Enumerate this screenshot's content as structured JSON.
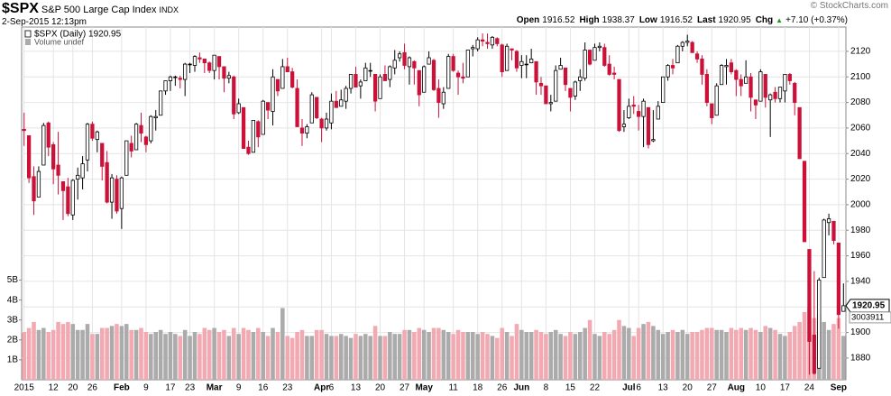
{
  "header": {
    "symbol": "$SPX",
    "name": "S&P 500 Large Cap Index",
    "exchange": "INDX",
    "datetime": "2-Sep-2015 12:13pm",
    "copyright": "© StockCharts.com",
    "quote": [
      {
        "label": "Open",
        "value": "1916.52"
      },
      {
        "label": "High",
        "value": "1938.37"
      },
      {
        "label": "Low",
        "value": "1916.52"
      },
      {
        "label": "Last",
        "value": "1920.95"
      },
      {
        "label": "Chg",
        "value": "+7.10 (+0.37%)"
      }
    ]
  },
  "chart_data": {
    "type": "candlestick",
    "legend": [
      "$SPX (Daily) 1920.95",
      "Volume undef"
    ],
    "price_tag": "1920.95",
    "volume_tag": "3003911",
    "colors": {
      "up": "#000000",
      "down": "#cc1139",
      "volume_up": "#ababab",
      "volume_down": "#f2a9b1",
      "grid": "#e4e4e4"
    },
    "grid": true,
    "categories": [
      "2015",
      null,
      null,
      null,
      null,
      null,
      "12",
      null,
      null,
      null,
      "20",
      null,
      null,
      null,
      "26",
      null,
      null,
      null,
      null,
      null,
      "Feb",
      null,
      null,
      null,
      null,
      "9",
      null,
      null,
      null,
      null,
      "17",
      null,
      null,
      null,
      "23",
      null,
      null,
      null,
      null,
      "Mar",
      null,
      null,
      null,
      null,
      "9",
      null,
      null,
      null,
      null,
      "16",
      null,
      null,
      null,
      null,
      "23",
      null,
      null,
      null,
      null,
      null,
      null,
      "Apr",
      null,
      "6",
      null,
      null,
      null,
      null,
      "13",
      null,
      null,
      null,
      null,
      "20",
      null,
      null,
      null,
      null,
      "27",
      null,
      null,
      null,
      "May",
      null,
      null,
      null,
      null,
      null,
      "11",
      null,
      null,
      null,
      null,
      "18",
      null,
      null,
      null,
      null,
      "26",
      null,
      null,
      null,
      "Jun",
      null,
      null,
      null,
      null,
      "8",
      null,
      null,
      null,
      null,
      "15",
      null,
      null,
      null,
      null,
      "22",
      null,
      null,
      null,
      null,
      null,
      null,
      "Jul",
      null,
      "6",
      null,
      null,
      null,
      null,
      "13",
      null,
      null,
      null,
      null,
      "20",
      null,
      null,
      null,
      null,
      "27",
      null,
      null,
      null,
      null,
      "Aug",
      null,
      null,
      null,
      null,
      "10",
      null,
      null,
      null,
      null,
      "17",
      null,
      null,
      null,
      null,
      "24",
      null,
      null,
      null,
      null,
      null,
      "Sep",
      null
    ],
    "open": [
      2059,
      2054,
      2022,
      2006,
      2031,
      2064,
      2047,
      2031,
      2018,
      2014,
      1992,
      2020,
      2021,
      2035,
      2063,
      2051,
      2048,
      2033,
      2002,
      2020,
      1997,
      2023,
      2048,
      2043,
      2062,
      2053,
      2050,
      2068,
      2070,
      2089,
      2097,
      2100,
      2099,
      2098,
      2110,
      2109,
      2115,
      2114,
      2111,
      2105,
      2116,
      2108,
      2099,
      2100,
      2072,
      2076,
      2045,
      2041,
      2065,
      2055,
      2080,
      2073,
      2098,
      2091,
      2108,
      2104,
      2091,
      2060,
      2056,
      2064,
      2084,
      2067,
      2060,
      2064,
      2081,
      2077,
      2081,
      2091,
      2102,
      2093,
      2097,
      2105,
      2102,
      2083,
      2102,
      2098,
      2107,
      2115,
      2119,
      2108,
      2112,
      2105,
      2088,
      2110,
      2113,
      2091,
      2079,
      2091,
      2116,
      2103,
      2100,
      2100,
      2122,
      2122,
      2129,
      2127,
      2125,
      2130,
      2125,
      2105,
      2122,
      2120,
      2109,
      2110,
      2111,
      2112,
      2095,
      2093,
      2079,
      2081,
      2106,
      2107,
      2091,
      2085,
      2097,
      2099,
      2121,
      2113,
      2123,
      2123,
      2110,
      2103,
      2098,
      2061,
      2068,
      2078,
      2073,
      2069,
      2076,
      2050,
      2067,
      2080,
      2100,
      2109,
      2111,
      2124,
      2127,
      2127,
      2118,
      2114,
      2102,
      2079,
      2070,
      2094,
      2108,
      2111,
      2105,
      2098,
      2095,
      2100,
      2082,
      2081,
      2102,
      2082,
      2088,
      2083,
      2089,
      2102,
      2095,
      2076,
      2034,
      1965,
      1898,
      1872,
      1943,
      1986,
      1987,
      1970,
      1916.52
    ],
    "high": [
      2072,
      2054,
      2030,
      2030,
      2064,
      2065,
      2049,
      2057,
      2018,
      2021,
      2020,
      2029,
      2038,
      2064,
      2065,
      2058,
      2048,
      2042,
      2024,
      2023,
      2022,
      2050,
      2054,
      2064,
      2072,
      2054,
      2070,
      2074,
      2089,
      2097,
      2101,
      2101,
      2101,
      2111,
      2111,
      2117,
      2119,
      2114,
      2112,
      2117,
      2116,
      2108,
      2104,
      2101,
      2083,
      2076,
      2050,
      2066,
      2066,
      2082,
      2080,
      2106,
      2098,
      2114,
      2115,
      2107,
      2098,
      2067,
      2063,
      2088,
      2084,
      2068,
      2072,
      2087,
      2089,
      2090,
      2093,
      2102,
      2108,
      2098,
      2111,
      2111,
      2102,
      2102,
      2109,
      2109,
      2121,
      2120,
      2126,
      2116,
      2113,
      2105,
      2109,
      2120,
      2114,
      2098,
      2092,
      2118,
      2118,
      2105,
      2111,
      2121,
      2125,
      2131,
      2134,
      2134,
      2132,
      2131,
      2126,
      2126,
      2122,
      2121,
      2117,
      2117,
      2122,
      2112,
      2100,
      2093,
      2086,
      2109,
      2115,
      2107,
      2091,
      2097,
      2106,
      2127,
      2121,
      2126,
      2127,
      2126,
      2117,
      2108,
      2098,
      2074,
      2083,
      2085,
      2078,
      2083,
      2076,
      2074,
      2081,
      2100,
      2110,
      2114,
      2125,
      2128,
      2133,
      2128,
      2120,
      2117,
      2106,
      2079,
      2095,
      2110,
      2114,
      2114,
      2106,
      2102,
      2113,
      2103,
      2082,
      2106,
      2102,
      2087,
      2092,
      2092,
      2102,
      2103,
      2096,
      2076,
      2034,
      1965,
      1948,
      1943,
      1989,
      1993,
      1987,
      1970,
      1938.37
    ],
    "low": [
      2046,
      2017,
      1992,
      2006,
      2031,
      2038,
      2016,
      2008,
      1988,
      1991,
      1988,
      2004,
      2012,
      2026,
      2050,
      2041,
      2019,
      2001,
      1989,
      1993,
      1981,
      2023,
      2037,
      2043,
      2049,
      2041,
      2048,
      2058,
      2070,
      2086,
      2089,
      2093,
      2091,
      2085,
      2103,
      2104,
      2111,
      2103,
      2103,
      2098,
      2098,
      2088,
      2095,
      2067,
      2071,
      2044,
      2039,
      2041,
      2045,
      2055,
      2067,
      2062,
      2085,
      2091,
      2104,
      2091,
      2061,
      2046,
      2052,
      2064,
      2067,
      2049,
      2058,
      2059,
      2076,
      2077,
      2075,
      2087,
      2092,
      2083,
      2097,
      2100,
      2073,
      2083,
      2097,
      2092,
      2102,
      2112,
      2106,
      2094,
      2094,
      2077,
      2088,
      2110,
      2089,
      2068,
      2075,
      2091,
      2104,
      2086,
      2095,
      2100,
      2116,
      2120,
      2124,
      2122,
      2122,
      2124,
      2100,
      2105,
      2113,
      2104,
      2099,
      2099,
      2111,
      2086,
      2086,
      2079,
      2073,
      2081,
      2106,
      2089,
      2073,
      2082,
      2089,
      2097,
      2109,
      2113,
      2120,
      2108,
      2101,
      2098,
      2057,
      2057,
      2067,
      2071,
      2058,
      2045,
      2044,
      2049,
      2067,
      2080,
      2097,
      2102,
      2111,
      2120,
      2124,
      2119,
      2111,
      2094,
      2077,
      2063,
      2070,
      2094,
      2094,
      2102,
      2085,
      2085,
      2095,
      2073,
      2067,
      2081,
      2076,
      2053,
      2080,
      2080,
      2080,
      2094,
      2070,
      2036,
      1971,
      1867,
      1867,
      1872,
      1943,
      1976,
      1969,
      1903,
      1916.52
    ],
    "close": [
      2058,
      2021,
      2003,
      2026,
      2062,
      2045,
      2028,
      2023,
      2011,
      1993,
      2019,
      2023,
      2032,
      2063,
      2052,
      2057,
      2030,
      2002,
      2021,
      1995,
      2021,
      2050,
      2042,
      2063,
      2056,
      2047,
      2069,
      2069,
      2089,
      2097,
      2100,
      2100,
      2098,
      2110,
      2110,
      2116,
      2114,
      2111,
      2105,
      2117,
      2108,
      2099,
      2101,
      2071,
      2079,
      2044,
      2040,
      2066,
      2053,
      2081,
      2074,
      2100,
      2089,
      2108,
      2104,
      2092,
      2061,
      2056,
      2061,
      2086,
      2068,
      2060,
      2067,
      2081,
      2076,
      2082,
      2091,
      2102,
      2092,
      2096,
      2107,
      2105,
      2081,
      2100,
      2097,
      2108,
      2113,
      2118,
      2109,
      2115,
      2107,
      2086,
      2108,
      2115,
      2090,
      2080,
      2088,
      2116,
      2105,
      2100,
      2099,
      2121,
      2123,
      2129,
      2128,
      2126,
      2131,
      2126,
      2104,
      2124,
      2121,
      2107,
      2112,
      2110,
      2114,
      2096,
      2093,
      2079,
      2080,
      2105,
      2109,
      2094,
      2084,
      2096,
      2100,
      2121,
      2110,
      2123,
      2124,
      2109,
      2102,
      2102,
      2058,
      2063,
      2077,
      2077,
      2069,
      2081,
      2047,
      2051,
      2077,
      2100,
      2109,
      2107,
      2124,
      2127,
      2128,
      2119,
      2114,
      2102,
      2080,
      2068,
      2093,
      2109,
      2109,
      2104,
      2098,
      2093,
      2100,
      2084,
      2078,
      2104,
      2084,
      2086,
      2083,
      2092,
      2102,
      2097,
      2080,
      2036,
      1971,
      1893,
      1868,
      1941,
      1988,
      1989,
      1972,
      1914,
      1920.95
    ],
    "volume": [
      2.4,
      2.6,
      2.9,
      2.5,
      2.6,
      2.4,
      2.5,
      2.9,
      2.8,
      2.9,
      2.8,
      2.5,
      2.5,
      2.8,
      2.3,
      2.3,
      2.6,
      2.6,
      2.7,
      2.8,
      2.7,
      2.8,
      2.5,
      2.5,
      2.6,
      2.4,
      2.3,
      2.4,
      2.5,
      2.3,
      2.4,
      2.3,
      2.2,
      2.5,
      2.2,
      2.4,
      2.3,
      2.6,
      2.5,
      2.6,
      2.4,
      2.5,
      2.2,
      2.6,
      2.3,
      2.6,
      2.5,
      2.4,
      2.6,
      2.4,
      2.2,
      2.6,
      2.4,
      3.6,
      2.2,
      2.1,
      2.4,
      2.5,
      2.2,
      2.2,
      2.5,
      2.5,
      2.3,
      2.2,
      2.2,
      2.3,
      2.2,
      2.1,
      2.3,
      2.2,
      2.3,
      2.2,
      2.7,
      2.2,
      2.2,
      2.4,
      2.3,
      2.3,
      2.5,
      2.5,
      2.4,
      2.6,
      2.5,
      2.4,
      2.6,
      2.6,
      2.5,
      2.4,
      2.3,
      2.5,
      2.4,
      2.4,
      2.4,
      2.3,
      2.4,
      2.3,
      2.2,
      2.1,
      2.6,
      2.4,
      2.2,
      2.8,
      2.5,
      2.4,
      2.4,
      2.5,
      2.4,
      2.3,
      2.4,
      2.5,
      2.3,
      2.2,
      2.4,
      2.3,
      2.4,
      2.6,
      3.0,
      2.3,
      2.2,
      2.4,
      2.3,
      2.5,
      3.0,
      2.7,
      2.6,
      2.2,
      2.6,
      2.8,
      2.9,
      2.7,
      2.5,
      2.3,
      2.4,
      2.5,
      2.4,
      2.5,
      2.3,
      2.4,
      2.4,
      2.5,
      2.6,
      2.6,
      2.5,
      2.5,
      2.4,
      2.6,
      2.5,
      2.6,
      2.5,
      2.6,
      2.5,
      2.4,
      2.7,
      2.6,
      2.5,
      2.3,
      2.2,
      2.4,
      2.7,
      2.9,
      3.4,
      3.6,
      3.1,
      3.3,
      2.9,
      2.5,
      2.8,
      3.1,
      2.2
    ],
    "ylim": [
      1863,
      2139
    ],
    "yticks": [
      1880,
      1900,
      1920,
      1940,
      1960,
      1980,
      2000,
      2020,
      2040,
      2060,
      2080,
      2100,
      2120
    ],
    "y2lim": [
      0,
      17.7
    ],
    "y2ticks": [
      {
        "value": 1,
        "label": "1B"
      },
      {
        "value": 2,
        "label": "2B"
      },
      {
        "value": 3,
        "label": "3B"
      },
      {
        "value": 4,
        "label": "4B"
      },
      {
        "value": 5,
        "label": "5B"
      }
    ]
  }
}
